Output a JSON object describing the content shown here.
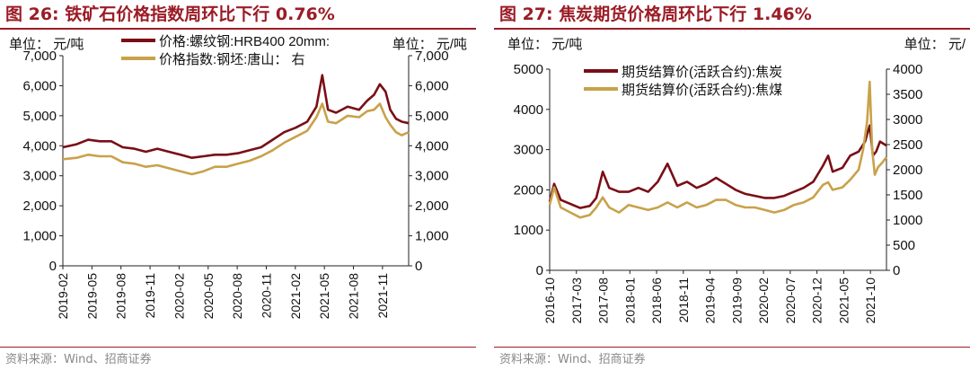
{
  "panels": [
    {
      "title": "图 26:  铁矿石价格指数周环比下行 0.76%",
      "source": "资料来源：Wind、招商证券",
      "unit_left": "单位：  元/吨",
      "unit_right": "单位：  元/吨"
    },
    {
      "title": "图 27:  焦炭期货价格周环比下行 1.46%",
      "source": "资料来源：Wind、招商证券",
      "unit_left": "单位：  元/吨",
      "unit_right": "单位：  元/"
    }
  ],
  "colors": {
    "accent": "#9b1c26",
    "series_dark": "#7a0e16",
    "series_gold": "#c8a24a"
  },
  "chart_data": [
    {
      "type": "line",
      "x_ticks": [
        "2019-02",
        "2019-05",
        "2019-08",
        "2019-11",
        "2020-02",
        "2020-05",
        "2020-08",
        "2020-11",
        "2021-02",
        "2021-05",
        "2021-08",
        "2021-11"
      ],
      "x_range": [
        2019.08,
        2022.08
      ],
      "ylim_left": [
        0,
        7000
      ],
      "ylim_right": [
        0,
        7000
      ],
      "yticks_left": [
        "0",
        "1,000",
        "2,000",
        "3,000",
        "4,000",
        "5,000",
        "6,000",
        "7,000"
      ],
      "yticks_right": [
        "0",
        "1,000",
        "2,000",
        "3,000",
        "4,000",
        "5,000",
        "6,000",
        "7,000"
      ],
      "grid": false,
      "legend_placement": "top-center",
      "series": [
        {
          "name": "价格:螺纹钢:HRB400 20mm:",
          "axis": "left",
          "color": "#7a0e16",
          "points": [
            [
              2019.08,
              3950
            ],
            [
              2019.2,
              4050
            ],
            [
              2019.3,
              4200
            ],
            [
              2019.4,
              4150
            ],
            [
              2019.5,
              4150
            ],
            [
              2019.6,
              3950
            ],
            [
              2019.7,
              3900
            ],
            [
              2019.8,
              3800
            ],
            [
              2019.9,
              3900
            ],
            [
              2020.0,
              3800
            ],
            [
              2020.1,
              3700
            ],
            [
              2020.2,
              3600
            ],
            [
              2020.3,
              3650
            ],
            [
              2020.4,
              3700
            ],
            [
              2020.5,
              3700
            ],
            [
              2020.6,
              3750
            ],
            [
              2020.7,
              3850
            ],
            [
              2020.8,
              3950
            ],
            [
              2020.9,
              4200
            ],
            [
              2021.0,
              4450
            ],
            [
              2021.1,
              4600
            ],
            [
              2021.2,
              4800
            ],
            [
              2021.28,
              5300
            ],
            [
              2021.33,
              6350
            ],
            [
              2021.38,
              5200
            ],
            [
              2021.45,
              5100
            ],
            [
              2021.55,
              5300
            ],
            [
              2021.65,
              5200
            ],
            [
              2021.72,
              5500
            ],
            [
              2021.78,
              5700
            ],
            [
              2021.83,
              6050
            ],
            [
              2021.88,
              5800
            ],
            [
              2021.92,
              5200
            ],
            [
              2021.97,
              4900
            ],
            [
              2022.02,
              4800
            ],
            [
              2022.08,
              4750
            ]
          ]
        },
        {
          "name": "价格指数:钢坯:唐山：  右",
          "axis": "right",
          "color": "#c8a24a",
          "points": [
            [
              2019.08,
              3550
            ],
            [
              2019.2,
              3600
            ],
            [
              2019.3,
              3700
            ],
            [
              2019.4,
              3650
            ],
            [
              2019.5,
              3650
            ],
            [
              2019.6,
              3450
            ],
            [
              2019.7,
              3400
            ],
            [
              2019.8,
              3300
            ],
            [
              2019.9,
              3350
            ],
            [
              2020.0,
              3250
            ],
            [
              2020.1,
              3150
            ],
            [
              2020.2,
              3050
            ],
            [
              2020.3,
              3150
            ],
            [
              2020.4,
              3300
            ],
            [
              2020.5,
              3300
            ],
            [
              2020.6,
              3400
            ],
            [
              2020.7,
              3500
            ],
            [
              2020.8,
              3650
            ],
            [
              2020.9,
              3850
            ],
            [
              2021.0,
              4100
            ],
            [
              2021.1,
              4300
            ],
            [
              2021.2,
              4500
            ],
            [
              2021.28,
              4950
            ],
            [
              2021.33,
              5400
            ],
            [
              2021.38,
              4800
            ],
            [
              2021.45,
              4750
            ],
            [
              2021.55,
              5000
            ],
            [
              2021.65,
              4950
            ],
            [
              2021.72,
              5150
            ],
            [
              2021.78,
              5200
            ],
            [
              2021.83,
              5400
            ],
            [
              2021.88,
              4950
            ],
            [
              2021.92,
              4700
            ],
            [
              2021.97,
              4450
            ],
            [
              2022.02,
              4350
            ],
            [
              2022.08,
              4450
            ]
          ]
        }
      ]
    },
    {
      "type": "line",
      "x_ticks": [
        "2016-10",
        "2017-03",
        "2017-08",
        "2018-01",
        "2018-06",
        "2018-11",
        "2019-04",
        "2019-09",
        "2020-02",
        "2020-07",
        "2020-12",
        "2021-05",
        "2021-10"
      ],
      "x_range": [
        2016.78,
        2021.98
      ],
      "ylim_left": [
        0,
        5000
      ],
      "ylim_right": [
        0,
        4000
      ],
      "yticks_left": [
        "0",
        "1000",
        "2000",
        "3000",
        "4000",
        "5000"
      ],
      "yticks_right": [
        "0",
        "500",
        "1000",
        "1500",
        "2000",
        "2500",
        "3000",
        "3500",
        "4000"
      ],
      "grid": false,
      "legend_placement": "top-center",
      "series": [
        {
          "name": "期货结算价(活跃合约):焦炭",
          "axis": "left",
          "color": "#7a0e16",
          "points": [
            [
              2016.78,
              1700
            ],
            [
              2016.85,
              2150
            ],
            [
              2016.95,
              1750
            ],
            [
              2017.1,
              1650
            ],
            [
              2017.25,
              1550
            ],
            [
              2017.4,
              1600
            ],
            [
              2017.5,
              1800
            ],
            [
              2017.6,
              2450
            ],
            [
              2017.7,
              2050
            ],
            [
              2017.85,
              1950
            ],
            [
              2018.0,
              1950
            ],
            [
              2018.15,
              2050
            ],
            [
              2018.3,
              1950
            ],
            [
              2018.45,
              2200
            ],
            [
              2018.6,
              2650
            ],
            [
              2018.75,
              2100
            ],
            [
              2018.9,
              2200
            ],
            [
              2019.05,
              2050
            ],
            [
              2019.2,
              2150
            ],
            [
              2019.35,
              2300
            ],
            [
              2019.5,
              2150
            ],
            [
              2019.65,
              2000
            ],
            [
              2019.8,
              1900
            ],
            [
              2019.95,
              1850
            ],
            [
              2020.1,
              1800
            ],
            [
              2020.25,
              1800
            ],
            [
              2020.4,
              1850
            ],
            [
              2020.55,
              1950
            ],
            [
              2020.7,
              2050
            ],
            [
              2020.85,
              2200
            ],
            [
              2021.0,
              2600
            ],
            [
              2021.08,
              2850
            ],
            [
              2021.15,
              2450
            ],
            [
              2021.3,
              2550
            ],
            [
              2021.42,
              2850
            ],
            [
              2021.55,
              2950
            ],
            [
              2021.65,
              3200
            ],
            [
              2021.72,
              3600
            ],
            [
              2021.77,
              2850
            ],
            [
              2021.82,
              2950
            ],
            [
              2021.88,
              3200
            ],
            [
              2021.98,
              3100
            ]
          ]
        },
        {
          "name": "期货结算价(活跃合约):焦煤",
          "axis": "right",
          "color": "#c8a24a",
          "points": [
            [
              2016.78,
              1300
            ],
            [
              2016.85,
              1650
            ],
            [
              2016.95,
              1250
            ],
            [
              2017.1,
              1150
            ],
            [
              2017.25,
              1050
            ],
            [
              2017.4,
              1100
            ],
            [
              2017.5,
              1250
            ],
            [
              2017.6,
              1450
            ],
            [
              2017.7,
              1250
            ],
            [
              2017.85,
              1150
            ],
            [
              2018.0,
              1300
            ],
            [
              2018.15,
              1250
            ],
            [
              2018.3,
              1200
            ],
            [
              2018.45,
              1250
            ],
            [
              2018.6,
              1350
            ],
            [
              2018.75,
              1250
            ],
            [
              2018.9,
              1350
            ],
            [
              2019.05,
              1250
            ],
            [
              2019.2,
              1300
            ],
            [
              2019.35,
              1400
            ],
            [
              2019.5,
              1400
            ],
            [
              2019.65,
              1300
            ],
            [
              2019.8,
              1250
            ],
            [
              2019.95,
              1250
            ],
            [
              2020.1,
              1200
            ],
            [
              2020.25,
              1150
            ],
            [
              2020.4,
              1200
            ],
            [
              2020.55,
              1300
            ],
            [
              2020.7,
              1350
            ],
            [
              2020.85,
              1450
            ],
            [
              2021.0,
              1700
            ],
            [
              2021.08,
              1750
            ],
            [
              2021.15,
              1600
            ],
            [
              2021.3,
              1650
            ],
            [
              2021.42,
              1800
            ],
            [
              2021.55,
              2000
            ],
            [
              2021.62,
              2400
            ],
            [
              2021.68,
              2950
            ],
            [
              2021.72,
              3750
            ],
            [
              2021.76,
              2400
            ],
            [
              2021.8,
              1900
            ],
            [
              2021.85,
              2050
            ],
            [
              2021.92,
              2150
            ],
            [
              2021.98,
              2250
            ]
          ]
        }
      ]
    }
  ]
}
